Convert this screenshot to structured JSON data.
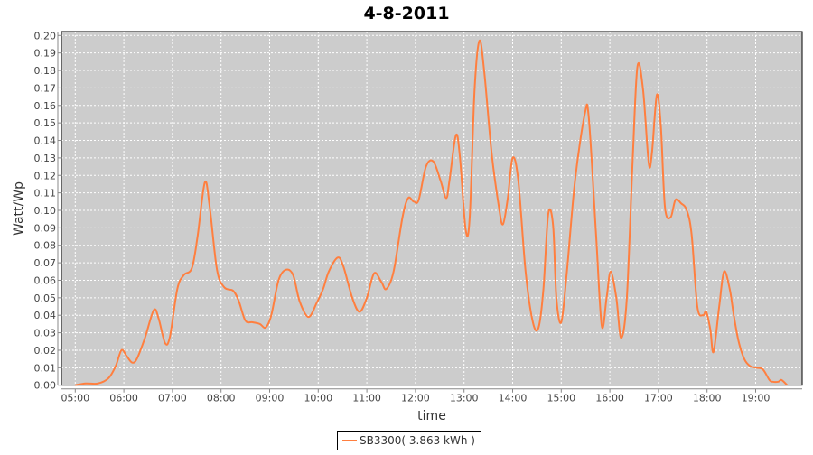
{
  "chart_data": {
    "type": "line",
    "title": "4-8-2011",
    "xlabel": "time",
    "ylabel": "Watt/Wp",
    "xlim": [
      "04:47",
      "20:02"
    ],
    "ylim": [
      0,
      0.2
    ],
    "grid": true,
    "legend_position": "bottom",
    "x_ticks": [
      "05:00",
      "06:00",
      "07:00",
      "08:00",
      "09:00",
      "10:00",
      "11:00",
      "12:00",
      "13:00",
      "14:00",
      "15:00",
      "16:00",
      "17:00",
      "18:00",
      "19:00"
    ],
    "y_ticks": [
      "0.00",
      "0.01",
      "0.02",
      "0.03",
      "0.04",
      "0.05",
      "0.06",
      "0.07",
      "0.08",
      "0.09",
      "0.10",
      "0.11",
      "0.12",
      "0.13",
      "0.14",
      "0.15",
      "0.16",
      "0.17",
      "0.18",
      "0.19",
      "0.20"
    ],
    "colors": {
      "background": "#cccccc",
      "grid": "#ffffff",
      "series": "#ff7f3f"
    },
    "series": [
      {
        "name": "SB3300( 3.863 kWh )",
        "x": [
          "05:00",
          "05:13",
          "05:28",
          "05:41",
          "05:50",
          "05:57",
          "06:03",
          "06:10",
          "06:16",
          "06:26",
          "06:37",
          "06:43",
          "06:51",
          "06:57",
          "07:06",
          "07:14",
          "07:24",
          "07:31",
          "07:40",
          "07:46",
          "07:55",
          "08:04",
          "08:15",
          "08:22",
          "08:30",
          "08:39",
          "08:48",
          "08:55",
          "09:02",
          "09:11",
          "09:20",
          "09:29",
          "09:37",
          "09:48",
          "09:58",
          "10:06",
          "10:13",
          "10:24",
          "10:31",
          "10:42",
          "10:51",
          "11:00",
          "11:09",
          "11:18",
          "11:24",
          "11:33",
          "11:44",
          "11:51",
          "11:58",
          "12:04",
          "12:13",
          "12:22",
          "12:31",
          "12:38",
          "12:42",
          "12:50",
          "12:55",
          "13:02",
          "13:07",
          "13:13",
          "13:19",
          "13:25",
          "13:34",
          "13:43",
          "13:48",
          "13:54",
          "14:00",
          "14:07",
          "14:16",
          "14:25",
          "14:32",
          "14:38",
          "14:44",
          "14:50",
          "14:54",
          "15:00",
          "15:07",
          "15:17",
          "15:29",
          "15:34",
          "15:43",
          "15:50",
          "15:56",
          "16:01",
          "16:08",
          "16:14",
          "16:21",
          "16:28",
          "16:34",
          "16:41",
          "16:48",
          "16:52",
          "16:58",
          "17:03",
          "17:08",
          "17:15",
          "17:21",
          "17:28",
          "17:35",
          "17:41",
          "17:48",
          "17:55",
          "17:59",
          "18:04",
          "18:08",
          "18:15",
          "18:21",
          "18:28",
          "18:33",
          "18:39",
          "18:46",
          "18:53",
          "19:01",
          "19:09",
          "19:17",
          "19:21",
          "19:28",
          "19:32",
          "19:39"
        ],
        "y": [
          0.0,
          0.001,
          0.001,
          0.004,
          0.011,
          0.02,
          0.017,
          0.013,
          0.015,
          0.027,
          0.043,
          0.038,
          0.024,
          0.028,
          0.055,
          0.063,
          0.067,
          0.085,
          0.116,
          0.102,
          0.066,
          0.056,
          0.054,
          0.048,
          0.037,
          0.036,
          0.035,
          0.033,
          0.04,
          0.06,
          0.066,
          0.063,
          0.048,
          0.039,
          0.047,
          0.055,
          0.065,
          0.073,
          0.068,
          0.05,
          0.042,
          0.05,
          0.064,
          0.059,
          0.055,
          0.065,
          0.096,
          0.107,
          0.105,
          0.106,
          0.125,
          0.128,
          0.117,
          0.107,
          0.117,
          0.143,
          0.13,
          0.089,
          0.096,
          0.169,
          0.197,
          0.179,
          0.133,
          0.102,
          0.092,
          0.107,
          0.13,
          0.117,
          0.065,
          0.036,
          0.033,
          0.055,
          0.098,
          0.091,
          0.05,
          0.036,
          0.065,
          0.117,
          0.155,
          0.153,
          0.086,
          0.034,
          0.05,
          0.065,
          0.05,
          0.027,
          0.05,
          0.127,
          0.182,
          0.169,
          0.127,
          0.133,
          0.166,
          0.148,
          0.102,
          0.096,
          0.106,
          0.104,
          0.1,
          0.086,
          0.045,
          0.04,
          0.042,
          0.032,
          0.019,
          0.045,
          0.065,
          0.055,
          0.04,
          0.025,
          0.015,
          0.011,
          0.01,
          0.009,
          0.003,
          0.002,
          0.002,
          0.003,
          0.0
        ]
      }
    ]
  }
}
